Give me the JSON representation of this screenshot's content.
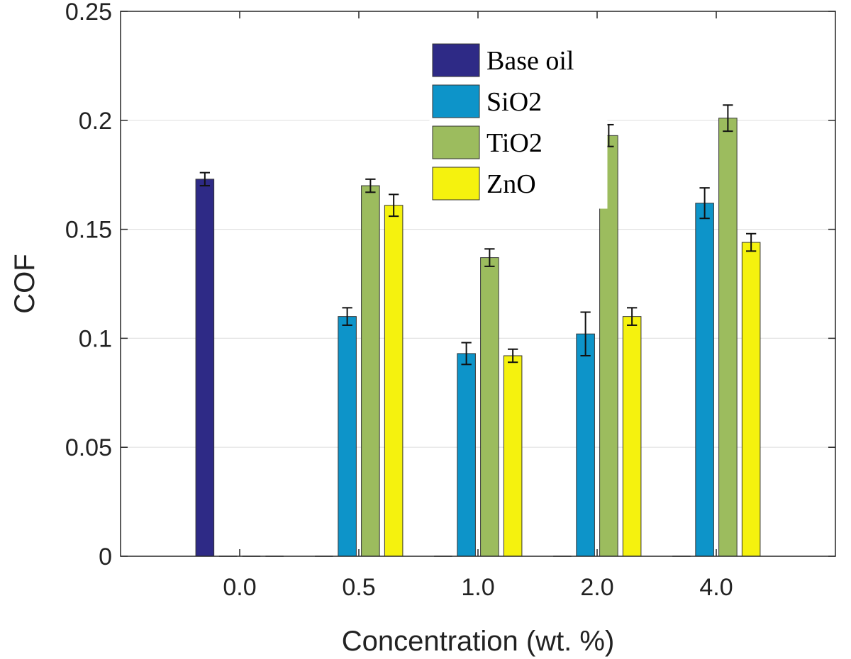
{
  "chart_data": {
    "type": "bar",
    "title": "",
    "xlabel": "Concentration (wt. %)",
    "ylabel": "COF",
    "ylim": [
      0,
      0.25
    ],
    "yticks": [
      0,
      0.05,
      0.1,
      0.15,
      0.2,
      0.25
    ],
    "ytick_labels": [
      "0",
      "0.05",
      "0.1",
      "0.15",
      "0.2",
      "0.25"
    ],
    "grid": true,
    "legend_position": "top-center",
    "categories": [
      "0.0",
      "0.5",
      "1.0",
      "2.0",
      "4.0"
    ],
    "series": [
      {
        "name": "Base oil",
        "color": "#2e2a86",
        "values": [
          0.173,
          0,
          0,
          0,
          0
        ],
        "errors": [
          0.003,
          0,
          0,
          0,
          0
        ]
      },
      {
        "name": "SiO2",
        "color": "#0d94c9",
        "values": [
          0,
          0.11,
          0.093,
          0.102,
          0.162
        ],
        "errors": [
          0,
          0.004,
          0.005,
          0.01,
          0.007
        ]
      },
      {
        "name": "TiO2",
        "color": "#9cbc5e",
        "values": [
          0,
          0.17,
          0.137,
          0.193,
          0.201
        ],
        "errors": [
          0,
          0.003,
          0.004,
          0.005,
          0.006
        ]
      },
      {
        "name": "ZnO",
        "color": "#f5f20e",
        "values": [
          0,
          0.161,
          0.092,
          0.11,
          0.144
        ],
        "errors": [
          0,
          0.005,
          0.003,
          0.004,
          0.004
        ]
      }
    ]
  }
}
